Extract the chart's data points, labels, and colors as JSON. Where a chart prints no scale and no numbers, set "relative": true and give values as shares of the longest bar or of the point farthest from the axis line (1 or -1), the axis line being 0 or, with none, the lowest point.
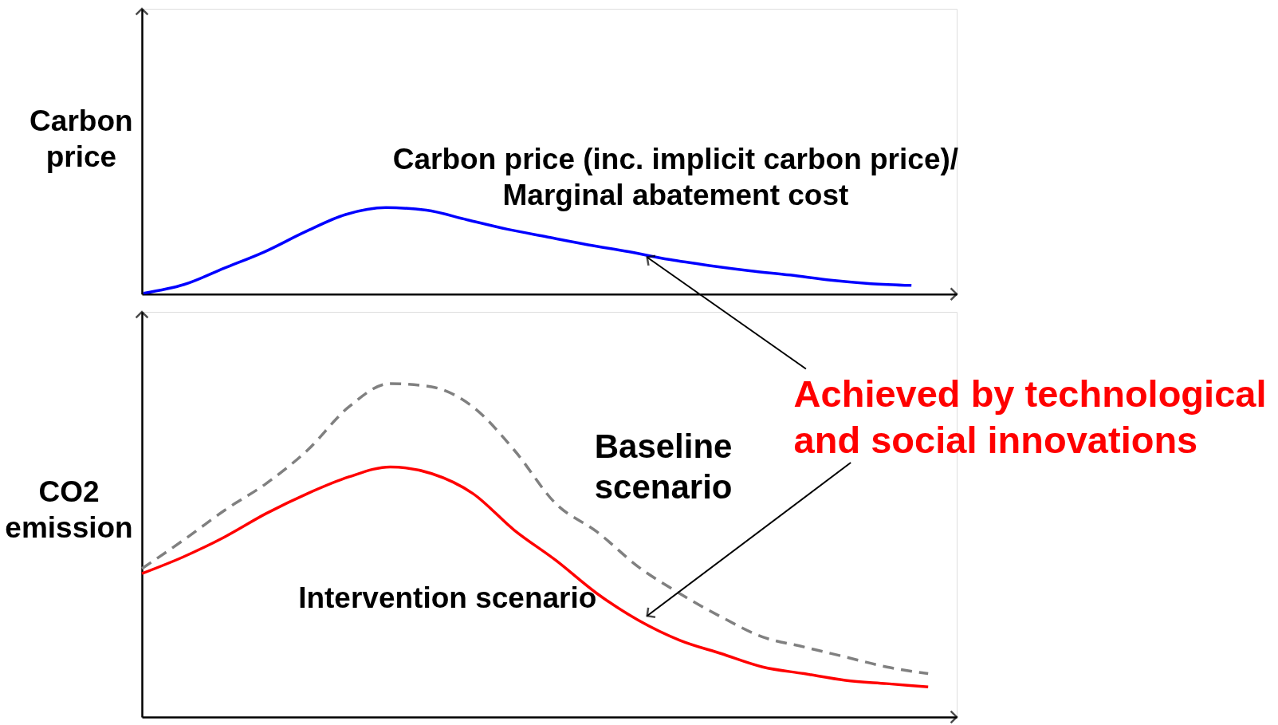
{
  "chart_data": [
    {
      "type": "line",
      "relative": true,
      "ylabel": "Carbon price",
      "categories": [
        null,
        null,
        null,
        null,
        null,
        null,
        null,
        null,
        null,
        null,
        null,
        null,
        null,
        null,
        null,
        null,
        null,
        null,
        null,
        null
      ],
      "series": [
        {
          "name": "Carbon price (inc. implicit carbon price)/ Marginal abatement cost",
          "color": "#0000ff",
          "line_style": "solid",
          "values": [
            0.01,
            0.11,
            0.3,
            0.49,
            0.72,
            0.92,
            1.0,
            0.97,
            0.86,
            0.75,
            0.66,
            0.57,
            0.49,
            0.4,
            0.33,
            0.27,
            0.22,
            0.16,
            0.12,
            0.1
          ]
        }
      ]
    },
    {
      "type": "line",
      "relative": true,
      "ylabel": "CO2 emission",
      "categories": [
        null,
        null,
        null,
        null,
        null,
        null,
        null,
        null,
        null,
        null,
        null,
        null,
        null,
        null,
        null,
        null,
        null,
        null,
        null,
        null
      ],
      "series": [
        {
          "name": "Baseline scenario",
          "color": "#808080",
          "line_style": "dashed",
          "values": [
            0.445,
            0.53,
            0.62,
            0.7,
            0.8,
            0.93,
            1.0,
            0.99,
            0.93,
            0.8,
            0.64,
            0.555,
            0.45,
            0.37,
            0.3,
            0.24,
            0.21,
            0.18,
            0.15,
            0.13
          ]
        },
        {
          "name": "Intervention scenario",
          "color": "#ff0000",
          "line_style": "solid",
          "values": [
            0.43,
            0.48,
            0.54,
            0.61,
            0.67,
            0.72,
            0.75,
            0.73,
            0.67,
            0.56,
            0.47,
            0.37,
            0.29,
            0.23,
            0.19,
            0.15,
            0.13,
            0.11,
            0.1,
            0.09
          ]
        }
      ],
      "annotations": [
        "Achieved by technological and social innovations"
      ]
    }
  ]
}
